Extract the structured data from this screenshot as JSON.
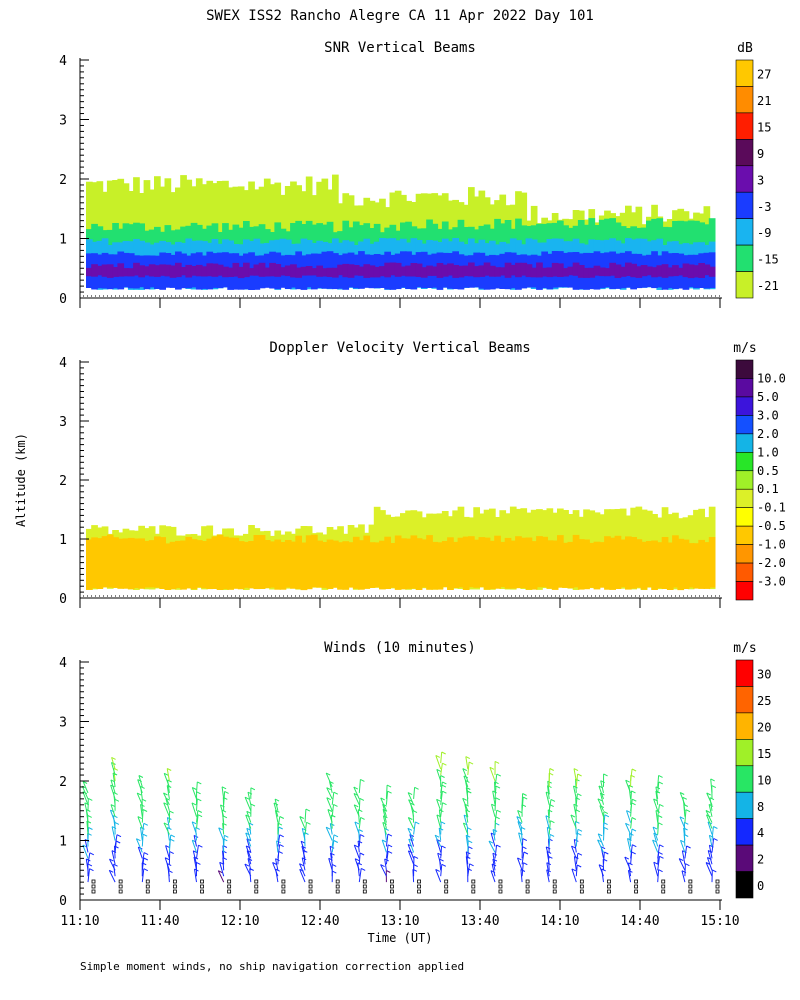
{
  "figure": {
    "title": "SWEX ISS2 Rancho Alegre CA  11 Apr 2022 Day 101",
    "shared_ylabel": "Altitude (km)",
    "xlabel": "Time (UT)",
    "footnote": "Simple moment winds, no ship navigation correction applied"
  },
  "chart_data": [
    {
      "type": "heatmap",
      "title": "SNR Vertical Beams",
      "units": "dB",
      "xlim": [
        "11:10",
        "15:10"
      ],
      "ylim": [
        0,
        4
      ],
      "yticks": [
        "0",
        "1",
        "2",
        "3",
        "4"
      ],
      "colorbar": {
        "labels": [
          "27",
          "21",
          "15",
          "9",
          "3",
          "-3",
          "-9",
          "-15",
          "-21"
        ],
        "colors": [
          "#ffc800",
          "#ff8c00",
          "#ff1e00",
          "#5a0a5a",
          "#6a0dad",
          "#1a3cff",
          "#19b4f0",
          "#22e070",
          "#c8f028"
        ]
      },
      "description_layers": [
        {
          "name": "weak echo",
          "color": "#c8f028",
          "altitude_km": [
            0.2,
            1.9
          ]
        },
        {
          "name": "moderate echo",
          "color": "#22e070",
          "altitude_km": [
            0.2,
            1.3
          ]
        },
        {
          "name": "stronger echo",
          "color": "#19b4f0",
          "altitude_km": [
            0.15,
            0.95
          ]
        },
        {
          "name": "strong echo",
          "color": "#1a3cff",
          "altitude_km": [
            0.15,
            0.75
          ]
        },
        {
          "name": "peak echo",
          "color": "#6a0dad",
          "altitude_km": [
            0.35,
            0.55
          ]
        }
      ]
    },
    {
      "type": "heatmap",
      "title": "Doppler Velocity Vertical Beams",
      "units": "m/s",
      "xlim": [
        "11:10",
        "15:10"
      ],
      "ylim": [
        0,
        4
      ],
      "yticks": [
        "0",
        "1",
        "2",
        "3",
        "4"
      ],
      "colorbar": {
        "labels": [
          "10.0",
          "5.0",
          "3.0",
          "2.0",
          "1.0",
          "0.5",
          "0.1",
          "-0.1",
          "-0.5",
          "-1.0",
          "-2.0",
          "-3.0"
        ],
        "colors": [
          "#3c0a3c",
          "#5a0aa0",
          "#3c14dc",
          "#1450ff",
          "#14b4e6",
          "#28e628",
          "#a0f028",
          "#dcf028",
          "#ffff00",
          "#ffc800",
          "#ff9600",
          "#ff5a00",
          "#ff0000"
        ]
      },
      "description_layers": [
        {
          "name": "near zero",
          "color": "#dcf028",
          "altitude_km": [
            0.15,
            1.35
          ]
        },
        {
          "name": "slight downdraft",
          "color": "#ffc800",
          "altitude_km": [
            0.15,
            1.0
          ]
        }
      ]
    },
    {
      "type": "scatter",
      "title": "Winds (10 minutes)",
      "units": "m/s",
      "xticks": [
        "11:10",
        "11:40",
        "12:10",
        "12:40",
        "13:10",
        "13:40",
        "14:10",
        "14:40",
        "15:10"
      ],
      "ylim": [
        0,
        4
      ],
      "yticks": [
        "0",
        "1",
        "2",
        "3",
        "4"
      ],
      "colorbar": {
        "labels": [
          "30",
          "25",
          "20",
          "15",
          "10",
          "8",
          "4",
          "2",
          "0"
        ],
        "colors": [
          "#ff0000",
          "#ff6400",
          "#ffb400",
          "#a0f028",
          "#28e664",
          "#14b4e6",
          "#1428ff",
          "#5a0a78",
          "#000000"
        ]
      },
      "profile_times": [
        "11:10",
        "11:20",
        "11:30",
        "11:40",
        "11:50",
        "12:00",
        "12:10",
        "12:20",
        "12:30",
        "12:40",
        "12:50",
        "13:00",
        "13:10",
        "13:20",
        "13:30",
        "13:40",
        "13:50",
        "14:00",
        "14:10",
        "14:20",
        "14:30",
        "14:40",
        "14:50",
        "15:00"
      ],
      "profile_tops_km": [
        1.9,
        2.3,
        2.0,
        2.1,
        1.9,
        1.8,
        1.8,
        1.6,
        1.4,
        2.0,
        1.9,
        1.8,
        1.8,
        2.4,
        2.3,
        2.2,
        1.7,
        2.1,
        2.1,
        2.0,
        2.1,
        2.0,
        1.7,
        1.9
      ],
      "speed_by_altitude_ms": [
        {
          "altitude_km": 0.5,
          "speed": 3
        },
        {
          "altitude_km": 1.0,
          "speed": 5
        },
        {
          "altitude_km": 1.5,
          "speed": 9
        },
        {
          "altitude_km": 2.0,
          "speed": 14
        }
      ]
    }
  ]
}
